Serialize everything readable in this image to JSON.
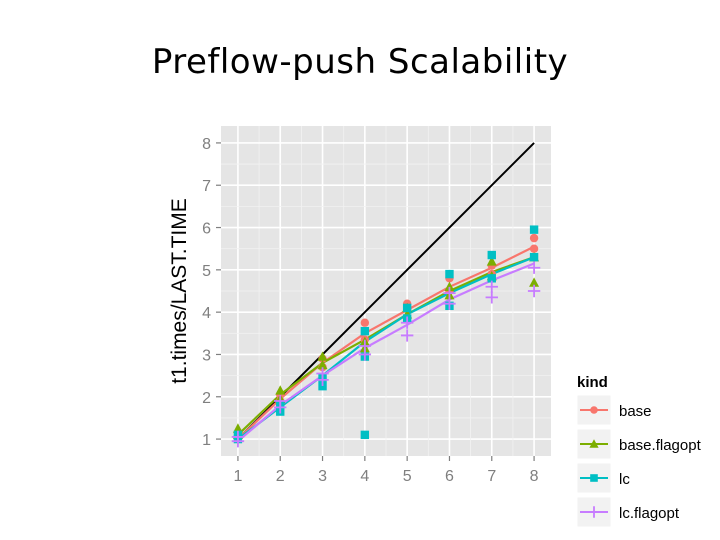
{
  "slide": {
    "title": "Preflow-push Scalability"
  },
  "chart_data": {
    "type": "scatter",
    "title": "",
    "xlabel": "",
    "ylabel": "t1.times/LAST.TIME",
    "xlim": [
      0.6,
      8.4
    ],
    "ylim": [
      0.6,
      8.4
    ],
    "x_ticks": [
      "1",
      "2",
      "3",
      "4",
      "5",
      "6",
      "7",
      "8"
    ],
    "y_ticks": [
      "1",
      "2",
      "3",
      "4",
      "5",
      "6",
      "7",
      "8"
    ],
    "grid": true,
    "legend": {
      "title": "kind",
      "placement": "right",
      "entries": [
        "base",
        "base.flagopt",
        "lc",
        "lc.flagopt"
      ]
    },
    "reference_line": {
      "from": [
        1,
        1
      ],
      "to": [
        8,
        8
      ],
      "color": "#000000"
    },
    "series": [
      {
        "name": "base",
        "color": "#F8766D",
        "marker": "circle",
        "points": [
          [
            1,
            1.0
          ],
          [
            1,
            1.15
          ],
          [
            2,
            1.9
          ],
          [
            2,
            2.05
          ],
          [
            3,
            2.7
          ],
          [
            3,
            2.9
          ],
          [
            4,
            3.35
          ],
          [
            4,
            3.75
          ],
          [
            5,
            4.1
          ],
          [
            5,
            4.2
          ],
          [
            6,
            4.5
          ],
          [
            6,
            4.8
          ],
          [
            7,
            4.9
          ],
          [
            7,
            5.1
          ],
          [
            8,
            5.5
          ],
          [
            8,
            5.75
          ]
        ],
        "trend": [
          [
            1,
            1.0
          ],
          [
            2,
            1.95
          ],
          [
            3,
            2.8
          ],
          [
            4,
            3.5
          ],
          [
            5,
            4.05
          ],
          [
            6,
            4.6
          ],
          [
            7,
            5.05
          ],
          [
            8,
            5.55
          ]
        ]
      },
      {
        "name": "base.flagopt",
        "color": "#7CAE00",
        "marker": "triangle",
        "points": [
          [
            1,
            1.25
          ],
          [
            1,
            1.1
          ],
          [
            2,
            2.15
          ],
          [
            2,
            1.95
          ],
          [
            3,
            2.95
          ],
          [
            3,
            2.75
          ],
          [
            4,
            3.3
          ],
          [
            4,
            3.15
          ],
          [
            5,
            3.95
          ],
          [
            5,
            4.1
          ],
          [
            6,
            4.4
          ],
          [
            6,
            4.6
          ],
          [
            7,
            4.85
          ],
          [
            7,
            5.2
          ],
          [
            8,
            4.7
          ],
          [
            8,
            5.3
          ]
        ],
        "trend": [
          [
            1,
            1.1
          ],
          [
            2,
            2.05
          ],
          [
            3,
            2.8
          ],
          [
            4,
            3.35
          ],
          [
            5,
            3.95
          ],
          [
            6,
            4.5
          ],
          [
            7,
            4.95
          ],
          [
            8,
            5.3
          ]
        ]
      },
      {
        "name": "lc",
        "color": "#00BFC4",
        "marker": "square",
        "points": [
          [
            1,
            1.0
          ],
          [
            1,
            1.1
          ],
          [
            2,
            1.65
          ],
          [
            2,
            1.8
          ],
          [
            3,
            2.25
          ],
          [
            3,
            2.45
          ],
          [
            4,
            2.95
          ],
          [
            4,
            3.55
          ],
          [
            4,
            1.1
          ],
          [
            5,
            3.85
          ],
          [
            5,
            4.1
          ],
          [
            6,
            4.15
          ],
          [
            6,
            4.9
          ],
          [
            7,
            4.8
          ],
          [
            7,
            5.35
          ],
          [
            8,
            5.3
          ],
          [
            8,
            5.95
          ]
        ],
        "trend": [
          [
            1,
            1.0
          ],
          [
            2,
            1.75
          ],
          [
            3,
            2.5
          ],
          [
            4,
            3.3
          ],
          [
            5,
            3.95
          ],
          [
            6,
            4.45
          ],
          [
            7,
            4.9
          ],
          [
            8,
            5.3
          ]
        ]
      },
      {
        "name": "lc.flagopt",
        "color": "#C77CFF",
        "marker": "plus",
        "points": [
          [
            1,
            0.95
          ],
          [
            1,
            1.05
          ],
          [
            2,
            1.75
          ],
          [
            2,
            1.9
          ],
          [
            3,
            2.4
          ],
          [
            3,
            2.55
          ],
          [
            4,
            3.0
          ],
          [
            4,
            3.2
          ],
          [
            5,
            3.45
          ],
          [
            5,
            3.75
          ],
          [
            6,
            4.2
          ],
          [
            6,
            4.45
          ],
          [
            7,
            4.35
          ],
          [
            7,
            4.6
          ],
          [
            8,
            4.5
          ],
          [
            8,
            5.05
          ]
        ],
        "trend": [
          [
            1,
            0.95
          ],
          [
            2,
            1.8
          ],
          [
            3,
            2.5
          ],
          [
            4,
            3.15
          ],
          [
            5,
            3.7
          ],
          [
            6,
            4.3
          ],
          [
            7,
            4.75
          ],
          [
            8,
            5.15
          ]
        ]
      }
    ]
  }
}
